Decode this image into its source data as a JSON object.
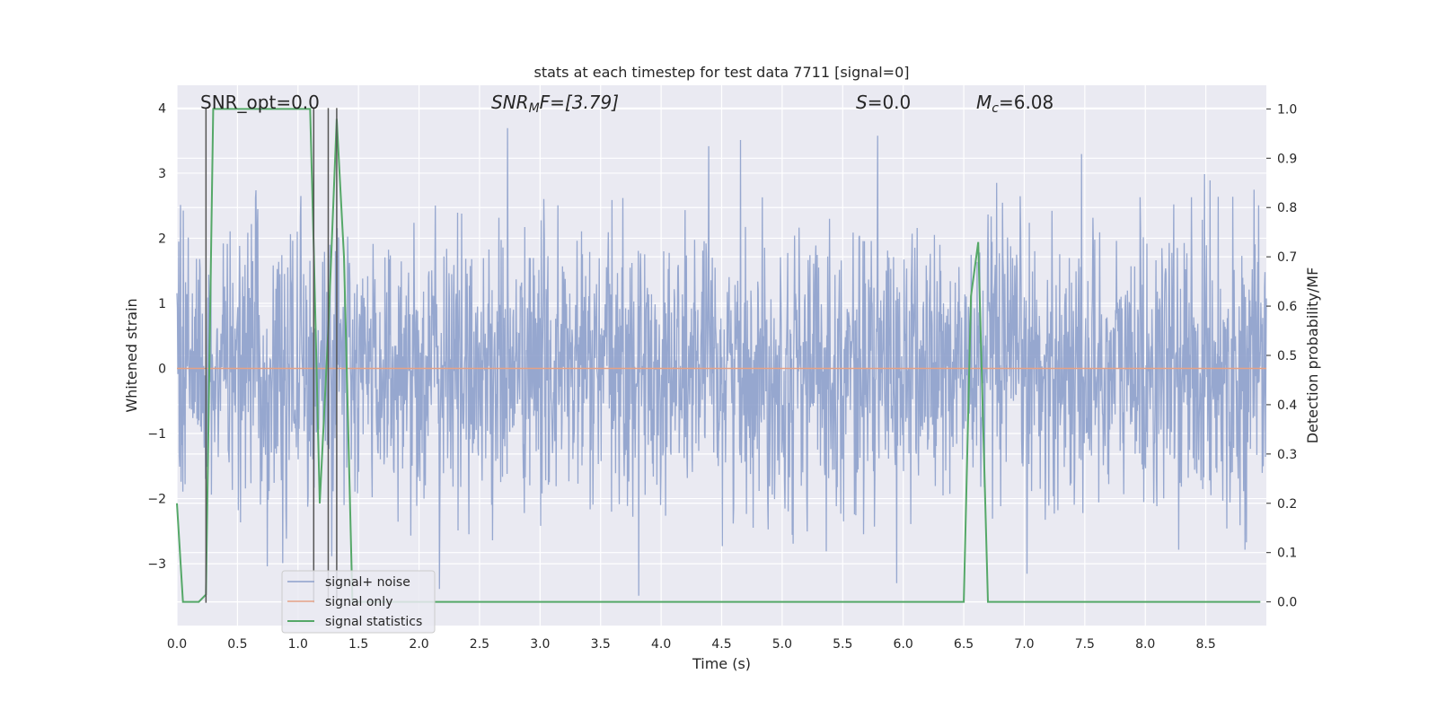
{
  "chart_data": {
    "type": "line",
    "title": "stats at each timestep for test data 7711 [signal=0]",
    "xlabel": "Time (s)",
    "ylabel_left": "Whitened strain",
    "ylabel_right": "Detection probability/MF",
    "xlim": [
      0.0,
      9.0
    ],
    "ylim_left": [
      -3.95,
      4.35
    ],
    "ylim_right": [
      -0.048,
      1.048
    ],
    "x_ticks": [
      "0.0",
      "0.5",
      "1.0",
      "1.5",
      "2.0",
      "2.5",
      "3.0",
      "3.5",
      "4.0",
      "4.5",
      "5.0",
      "5.5",
      "6.0",
      "6.5",
      "7.0",
      "7.5",
      "8.0",
      "8.5"
    ],
    "y_ticks_left": [
      "4",
      "3",
      "2",
      "1",
      "0",
      "−1",
      "−2",
      "−3"
    ],
    "y_ticks_right": [
      "1.0",
      "0.9",
      "0.8",
      "0.7",
      "0.6",
      "0.5",
      "0.4",
      "0.3",
      "0.2",
      "0.1",
      "0.0"
    ],
    "annotations": {
      "snr_opt": "SNR_opt=0.0",
      "snr_mf_sym": "SNR",
      "snr_mf_sub": "M",
      "snr_mf_rest": "F=[3.79]",
      "s_sym": "S",
      "s_rest": "=0.0",
      "mc_sym": "M",
      "mc_sub": "c",
      "mc_rest": "=6.08"
    },
    "series": [
      {
        "name": "signal+ noise",
        "color": "#8da0cb",
        "description": "whitened strain noise, amplitude range approx -3.6 to 4.0"
      },
      {
        "name": "signal only",
        "color": "#e5a186",
        "values_constant": 0.0
      },
      {
        "name": "signal statistics",
        "color": "#55a868",
        "x": [
          0.0,
          0.02,
          0.05,
          0.18,
          0.24,
          0.3,
          0.36,
          1.1,
          1.13,
          1.18,
          1.25,
          1.32,
          1.38,
          1.45,
          1.5,
          6.5,
          6.56,
          6.62,
          6.7,
          8.95
        ],
        "y": [
          0.2,
          0.12,
          0.0,
          0.0,
          0.015,
          1.0,
          1.0,
          1.0,
          0.72,
          0.2,
          0.55,
          0.98,
          0.7,
          0.0,
          0.0,
          0.0,
          0.62,
          0.73,
          0.0,
          0.0
        ]
      }
    ],
    "vlines_x": [
      0.24,
      1.13,
      1.25,
      1.32
    ],
    "legend": {
      "position": "lower-left",
      "entries": [
        "signal+ noise",
        "signal only",
        "signal statistics"
      ]
    },
    "grid": true
  }
}
